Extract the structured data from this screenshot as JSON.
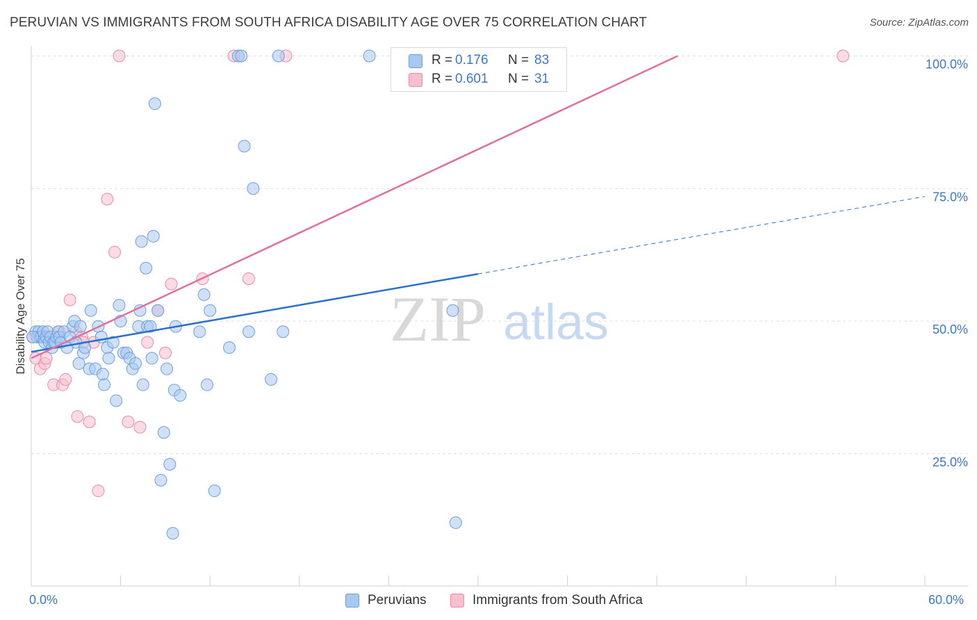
{
  "title": "PERUVIAN VS IMMIGRANTS FROM SOUTH AFRICA DISABILITY AGE OVER 75 CORRELATION CHART",
  "source": "Source: ZipAtlas.com",
  "watermark": {
    "left": "ZIP",
    "right": "atlas"
  },
  "legend": {
    "rows": [
      {
        "r_label": "R =",
        "r_value": "0.176",
        "n_label": "N =",
        "n_value": "83",
        "color": "#a9c8f0",
        "border": "#6a9fe0"
      },
      {
        "r_label": "R =",
        "r_value": "0.601",
        "n_label": "N =",
        "n_value": "31",
        "color": "#f7bfd0",
        "border": "#e98aa8"
      }
    ]
  },
  "bottom_legend": [
    {
      "label": "Peruvians",
      "color": "#a9c8f0",
      "border": "#6a9fe0"
    },
    {
      "label": "Immigrants from South Africa",
      "color": "#f7bfd0",
      "border": "#e98aa8"
    }
  ],
  "colors": {
    "blue": "#3b78c9",
    "blue_line": "#2a6fcc",
    "pink_line": "#e0709a",
    "grid": "#dddddd"
  },
  "chart_data": {
    "type": "scatter",
    "title": "PERUVIAN VS IMMIGRANTS FROM SOUTH AFRICA DISABILITY AGE OVER 75 CORRELATION CHART",
    "xlabel": "",
    "ylabel": "Disability Age Over 75",
    "xlim": [
      0,
      60
    ],
    "ylim": [
      0,
      100
    ],
    "x_tick_labels": [
      "0.0%",
      "60.0%"
    ],
    "y_ticks": [
      25,
      50,
      75,
      100
    ],
    "y_tick_labels": [
      "25.0%",
      "50.0%",
      "75.0%",
      "100.0%"
    ],
    "grid": true,
    "series": [
      {
        "name": "Peruvians",
        "trend": {
          "x0": 0,
          "y0": 44.2,
          "x1": 30,
          "y1": 58.9,
          "dash_to_x": 60,
          "dash_to_y": 73.5
        },
        "points": [
          [
            0.3,
            48
          ],
          [
            0.4,
            47
          ],
          [
            0.5,
            48
          ],
          [
            0.6,
            47
          ],
          [
            0.7,
            47
          ],
          [
            0.8,
            48
          ],
          [
            0.9,
            46
          ],
          [
            1.0,
            47
          ],
          [
            1.1,
            48
          ],
          [
            1.2,
            46
          ],
          [
            1.3,
            47
          ],
          [
            1.4,
            45
          ],
          [
            1.5,
            46
          ],
          [
            1.6,
            46
          ],
          [
            1.7,
            47
          ],
          [
            1.8,
            48
          ],
          [
            1.9,
            47
          ],
          [
            2.0,
            46
          ],
          [
            2.2,
            48
          ],
          [
            2.4,
            45
          ],
          [
            2.6,
            47
          ],
          [
            2.8,
            49
          ],
          [
            2.9,
            50
          ],
          [
            3.0,
            46
          ],
          [
            3.2,
            42
          ],
          [
            3.3,
            49
          ],
          [
            3.5,
            44
          ],
          [
            3.6,
            45
          ],
          [
            3.9,
            41
          ],
          [
            4.0,
            52
          ],
          [
            4.3,
            41
          ],
          [
            4.5,
            49
          ],
          [
            4.7,
            47
          ],
          [
            4.8,
            40
          ],
          [
            4.9,
            38
          ],
          [
            5.1,
            45
          ],
          [
            5.2,
            43
          ],
          [
            5.5,
            46
          ],
          [
            5.7,
            35
          ],
          [
            5.9,
            53
          ],
          [
            6.0,
            50
          ],
          [
            6.2,
            44
          ],
          [
            6.4,
            44
          ],
          [
            6.6,
            43
          ],
          [
            6.8,
            41
          ],
          [
            7.0,
            42
          ],
          [
            7.2,
            49
          ],
          [
            7.3,
            52
          ],
          [
            7.4,
            65
          ],
          [
            7.5,
            38
          ],
          [
            7.7,
            60
          ],
          [
            7.8,
            49
          ],
          [
            8.0,
            49
          ],
          [
            8.1,
            43
          ],
          [
            8.2,
            66
          ],
          [
            8.3,
            91
          ],
          [
            8.5,
            52
          ],
          [
            8.7,
            20
          ],
          [
            8.9,
            29
          ],
          [
            9.1,
            41
          ],
          [
            9.3,
            23
          ],
          [
            9.5,
            10
          ],
          [
            9.6,
            37
          ],
          [
            9.7,
            49
          ],
          [
            10.0,
            36
          ],
          [
            11.3,
            48
          ],
          [
            11.6,
            55
          ],
          [
            11.8,
            38
          ],
          [
            12.0,
            52
          ],
          [
            12.3,
            18
          ],
          [
            13.3,
            45
          ],
          [
            13.9,
            100
          ],
          [
            14.1,
            100
          ],
          [
            14.3,
            83
          ],
          [
            14.6,
            48
          ],
          [
            14.9,
            75
          ],
          [
            16.1,
            39
          ],
          [
            16.6,
            100
          ],
          [
            16.9,
            48
          ],
          [
            22.7,
            100
          ],
          [
            28.3,
            52
          ],
          [
            28.5,
            12
          ],
          [
            0.1,
            47
          ]
        ]
      },
      {
        "name": "Immigrants from South Africa",
        "trend": {
          "x0": 0,
          "y0": 43,
          "x1": 43.4,
          "y1": 100
        },
        "points": [
          [
            0.1,
            47
          ],
          [
            0.3,
            43
          ],
          [
            0.6,
            41
          ],
          [
            0.9,
            42
          ],
          [
            1.0,
            43
          ],
          [
            1.5,
            38
          ],
          [
            1.9,
            48
          ],
          [
            2.1,
            38
          ],
          [
            2.3,
            39
          ],
          [
            2.6,
            54
          ],
          [
            3.0,
            48
          ],
          [
            3.1,
            32
          ],
          [
            3.4,
            47
          ],
          [
            3.9,
            31
          ],
          [
            4.2,
            46
          ],
          [
            4.5,
            18
          ],
          [
            5.1,
            73
          ],
          [
            5.6,
            63
          ],
          [
            5.9,
            100
          ],
          [
            6.5,
            31
          ],
          [
            7.3,
            30
          ],
          [
            7.8,
            46
          ],
          [
            8.5,
            52
          ],
          [
            9.0,
            44
          ],
          [
            9.4,
            57
          ],
          [
            11.5,
            58
          ],
          [
            13.6,
            100
          ],
          [
            14.6,
            58
          ],
          [
            17.1,
            100
          ],
          [
            54.5,
            100
          ],
          [
            3.5,
            46
          ]
        ]
      }
    ]
  }
}
